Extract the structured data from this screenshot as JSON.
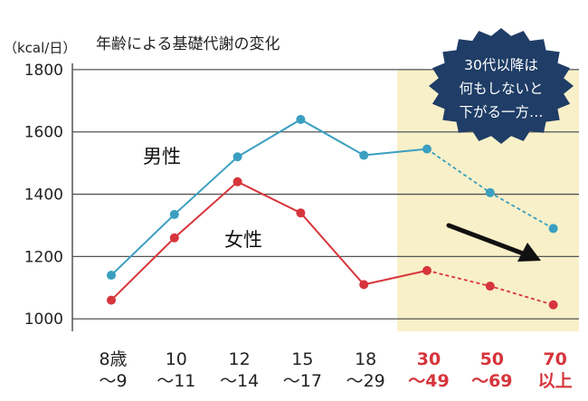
{
  "chart_data": {
    "type": "line",
    "title": "年齢による基礎代謝の変化",
    "unit_label": "（kcal/日）",
    "categories": [
      {
        "top": "8歳",
        "bottom": "～9",
        "highlight": false
      },
      {
        "top": "10",
        "bottom": "～11",
        "highlight": false
      },
      {
        "top": "12",
        "bottom": "～14",
        "highlight": false
      },
      {
        "top": "15",
        "bottom": "～17",
        "highlight": false
      },
      {
        "top": "18",
        "bottom": "～29",
        "highlight": false
      },
      {
        "top": "30",
        "bottom": "～49",
        "highlight": true
      },
      {
        "top": "50",
        "bottom": "～69",
        "highlight": true
      },
      {
        "top": "70",
        "bottom": "以上",
        "highlight": true
      }
    ],
    "ylim": [
      960,
      1820
    ],
    "yticks": [
      1000,
      1200,
      1400,
      1600,
      1800
    ],
    "grid": true,
    "highlight_from_index": 5,
    "series": [
      {
        "name": "男性",
        "color": "#3a9fc0",
        "values": [
          1140,
          1335,
          1520,
          1640,
          1525,
          1545,
          1405,
          1290
        ]
      },
      {
        "name": "女性",
        "color": "#d6353b",
        "values": [
          1060,
          1260,
          1440,
          1340,
          1110,
          1155,
          1105,
          1045
        ]
      }
    ],
    "dashed_from_index": 5,
    "annotation": [
      "30代以降は",
      "何もしないと",
      "下がる一方…"
    ],
    "colors": {
      "highlight_band": "#f8f0c8",
      "badge": "#1f3d66",
      "accent": "#d6353b",
      "arrow": "#111111"
    }
  }
}
